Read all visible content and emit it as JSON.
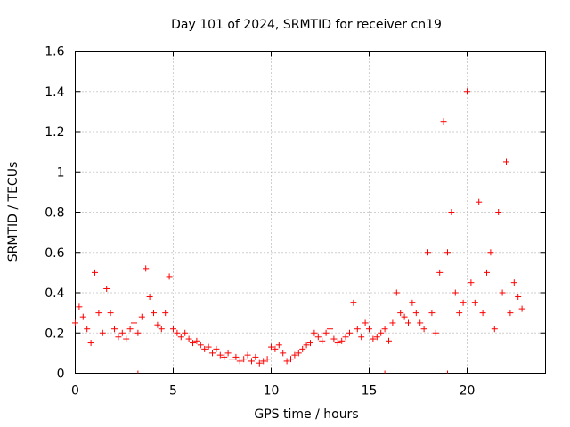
{
  "chart_data": {
    "type": "scatter",
    "title": "Day 101 of 2024, SRMTID for receiver cn19",
    "xlabel": "GPS time / hours",
    "ylabel": "SRMTID / TECUs",
    "xlim": [
      0,
      24
    ],
    "ylim": [
      0,
      1.6
    ],
    "xticks": [
      0,
      5,
      10,
      15,
      20
    ],
    "yticks": [
      0,
      0.2,
      0.4,
      0.6,
      0.8,
      1,
      1.2,
      1.4,
      1.6
    ],
    "xtick_labels": [
      "0",
      "5",
      "10",
      "15",
      "20"
    ],
    "ytick_labels": [
      "0",
      "0.2",
      "0.4",
      "0.6",
      "0.8",
      "1",
      "1.2",
      "1.4",
      "1.6"
    ],
    "grid": true,
    "marker": "+",
    "color": "#ff0000",
    "series": [
      {
        "name": "SRMTID",
        "x": [
          0.0,
          0.2,
          0.4,
          0.6,
          0.8,
          1.0,
          1.2,
          1.4,
          1.6,
          1.8,
          2.0,
          2.2,
          2.4,
          2.6,
          2.8,
          3.0,
          3.2,
          3.4,
          3.6,
          3.8,
          4.0,
          4.2,
          4.4,
          4.6,
          4.8,
          5.0,
          5.2,
          5.4,
          5.6,
          5.8,
          6.0,
          6.2,
          6.4,
          6.6,
          6.8,
          7.0,
          7.2,
          7.4,
          7.6,
          7.8,
          8.0,
          8.2,
          8.4,
          8.6,
          8.8,
          9.0,
          9.2,
          9.4,
          9.6,
          9.8,
          10.0,
          10.2,
          10.4,
          10.6,
          10.8,
          11.0,
          11.2,
          11.4,
          11.6,
          11.8,
          12.0,
          12.2,
          12.4,
          12.6,
          12.8,
          13.0,
          13.2,
          13.4,
          13.6,
          13.8,
          14.0,
          14.2,
          14.4,
          14.6,
          14.8,
          15.0,
          15.2,
          15.4,
          15.6,
          15.8,
          16.0,
          16.2,
          16.4,
          16.6,
          16.8,
          17.0,
          17.2,
          17.4,
          17.6,
          17.8,
          18.0,
          18.2,
          18.4,
          18.6,
          18.8,
          19.0,
          19.2,
          19.4,
          19.6,
          19.8,
          20.0,
          20.2,
          20.4,
          20.6,
          20.8,
          21.0,
          21.2,
          21.4,
          21.6,
          21.8,
          22.0,
          22.2,
          22.4,
          22.6,
          22.8
        ],
        "y": [
          0.25,
          0.33,
          0.28,
          0.22,
          0.15,
          0.5,
          0.3,
          0.2,
          0.42,
          0.3,
          0.22,
          0.18,
          0.2,
          0.17,
          0.22,
          0.25,
          0.2,
          0.28,
          0.52,
          0.38,
          0.3,
          0.24,
          0.22,
          0.3,
          0.48,
          0.22,
          0.2,
          0.18,
          0.2,
          0.17,
          0.15,
          0.16,
          0.14,
          0.12,
          0.13,
          0.1,
          0.12,
          0.09,
          0.08,
          0.1,
          0.07,
          0.08,
          0.06,
          0.07,
          0.09,
          0.06,
          0.08,
          0.05,
          0.06,
          0.07,
          0.13,
          0.12,
          0.14,
          0.1,
          0.06,
          0.07,
          0.09,
          0.1,
          0.12,
          0.14,
          0.15,
          0.2,
          0.18,
          0.16,
          0.2,
          0.22,
          0.17,
          0.15,
          0.16,
          0.18,
          0.2,
          0.35,
          0.22,
          0.18,
          0.25,
          0.22,
          0.17,
          0.18,
          0.2,
          0.22,
          0.16,
          0.25,
          0.4,
          0.3,
          0.28,
          0.25,
          0.35,
          0.3,
          0.25,
          0.22,
          0.6,
          0.3,
          0.2,
          0.5,
          1.25,
          0.6,
          0.8,
          0.4,
          0.3,
          0.35,
          1.4,
          0.45,
          0.35,
          0.85,
          0.3,
          0.5,
          0.6,
          0.22,
          0.8,
          0.4,
          1.05,
          0.3,
          0.45,
          0.38,
          0.32
        ]
      }
    ],
    "baseline_markers_x": [
      3.2,
      15.8,
      19.0
    ]
  }
}
